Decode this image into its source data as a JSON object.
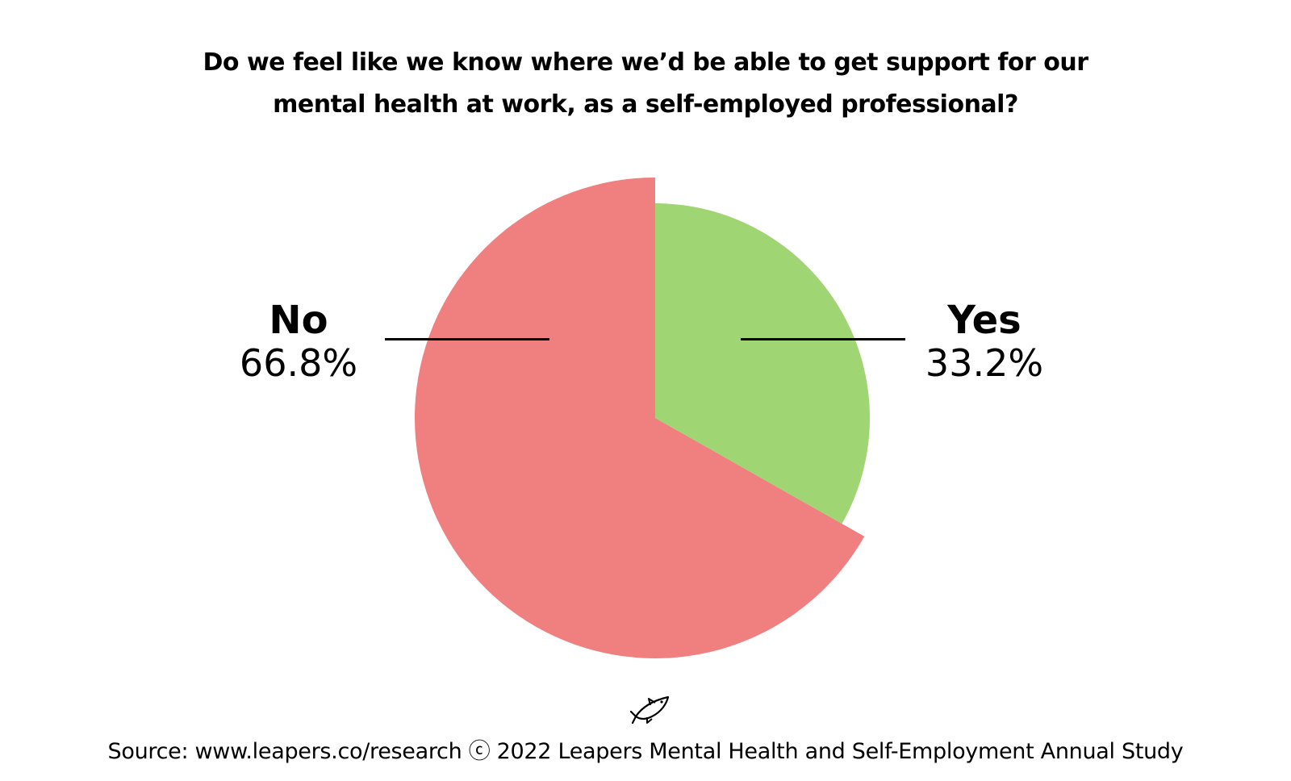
{
  "colors": {
    "no": "#f08080",
    "yes": "#9fd573",
    "text": "#000000"
  },
  "chart_data": {
    "type": "pie",
    "title_lines": [
      "Do we feel like we know where we’d be able to get support for our",
      "mental health at work, as a self-employed professional?"
    ],
    "slices": [
      {
        "label": "Yes",
        "value": 33.2,
        "display": "33.2%",
        "color": "#9fd573"
      },
      {
        "label": "No",
        "value": 66.8,
        "display": "66.8%",
        "color": "#f08080"
      }
    ],
    "legend": "none"
  },
  "footer": {
    "logo_icon": "leaping-fish-icon",
    "source": "Source: www.leapers.co/research ⓒ 2022 Leapers Mental Health and Self-Employment Annual Study"
  }
}
